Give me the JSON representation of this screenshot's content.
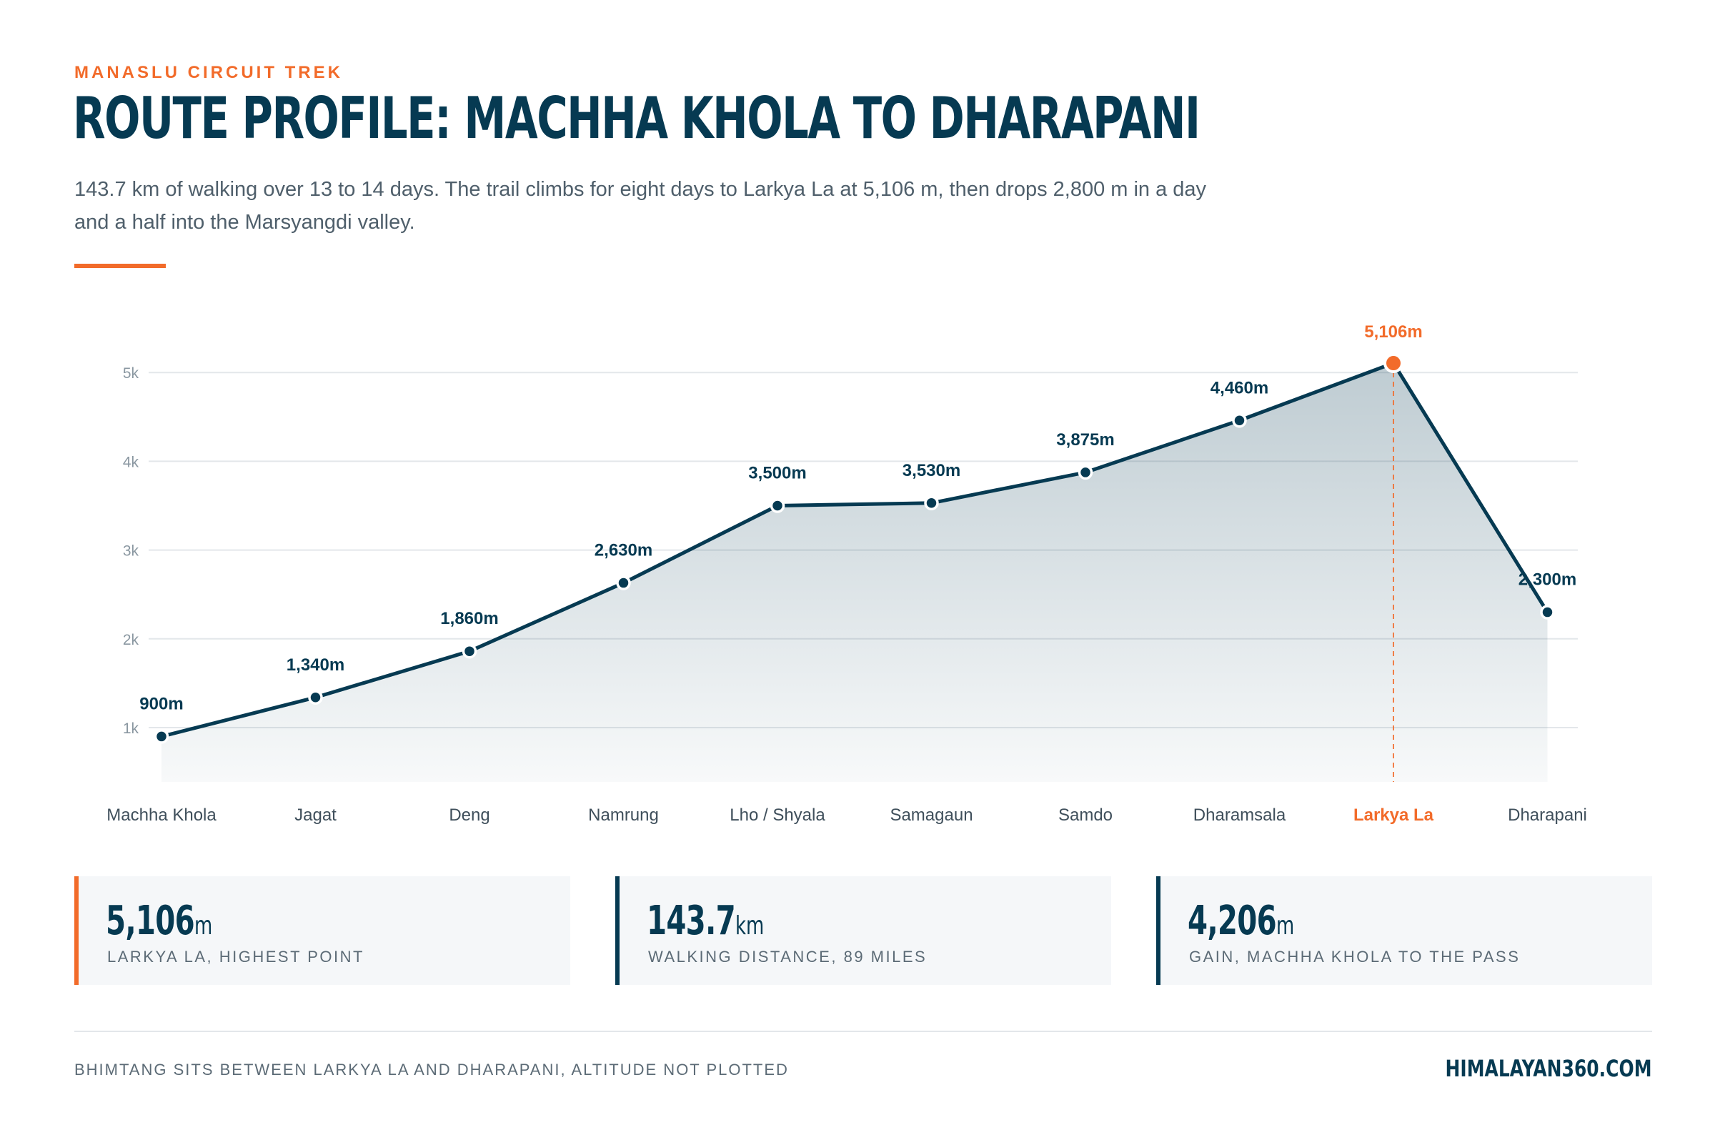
{
  "header": {
    "eyebrow": "MANASLU CIRCUIT TREK",
    "title": "ROUTE PROFILE: MACHHA KHOLA TO DHARAPANI",
    "subtitle": "143.7 km of walking over 13 to 14 days. The trail climbs for eight days to Larkya La at 5,106 m, then drops 2,800 m in a day and a half into the Marsyangdi valley."
  },
  "colors": {
    "primary": "#063a52",
    "accent": "#f26b2a",
    "grid": "#e3e7ea",
    "axis_text": "#8a97a1"
  },
  "chart_data": {
    "type": "area",
    "categories": [
      "Machha Khola",
      "Jagat",
      "Deng",
      "Namrung",
      "Lho / Shyala",
      "Samagaun",
      "Samdo",
      "Dharamsala",
      "Larkya La",
      "Dharapani"
    ],
    "values": [
      900,
      1340,
      1860,
      2630,
      3500,
      3530,
      3875,
      4460,
      5106,
      2300
    ],
    "data_labels": [
      "900m",
      "1,340m",
      "1,860m",
      "2,630m",
      "3,500m",
      "3,530m",
      "3,875m",
      "4,460m",
      "5,106m",
      "2,300m"
    ],
    "y_ticks": [
      {
        "value": 1000,
        "label": "1k"
      },
      {
        "value": 2000,
        "label": "2k"
      },
      {
        "value": 3000,
        "label": "3k"
      },
      {
        "value": 4000,
        "label": "4k"
      },
      {
        "value": 5000,
        "label": "5k"
      }
    ],
    "ylim": [
      380,
      5400
    ],
    "highlight_index": 8,
    "grid": true,
    "xlabel": "",
    "ylabel": ""
  },
  "stats": [
    {
      "value": "5,106",
      "unit": "m",
      "label": "Larkya La, highest point"
    },
    {
      "value": "143.7",
      "unit": "km",
      "label": "Walking distance, 89 miles"
    },
    {
      "value": "4,206",
      "unit": "m",
      "label": "Gain, Machha Khola to the pass"
    }
  ],
  "footer": {
    "note": "BHIMTANG SITS BETWEEN LARKYA LA AND DHARAPANI, ALTITUDE NOT PLOTTED",
    "brand": "HIMALAYAN360.COM"
  }
}
